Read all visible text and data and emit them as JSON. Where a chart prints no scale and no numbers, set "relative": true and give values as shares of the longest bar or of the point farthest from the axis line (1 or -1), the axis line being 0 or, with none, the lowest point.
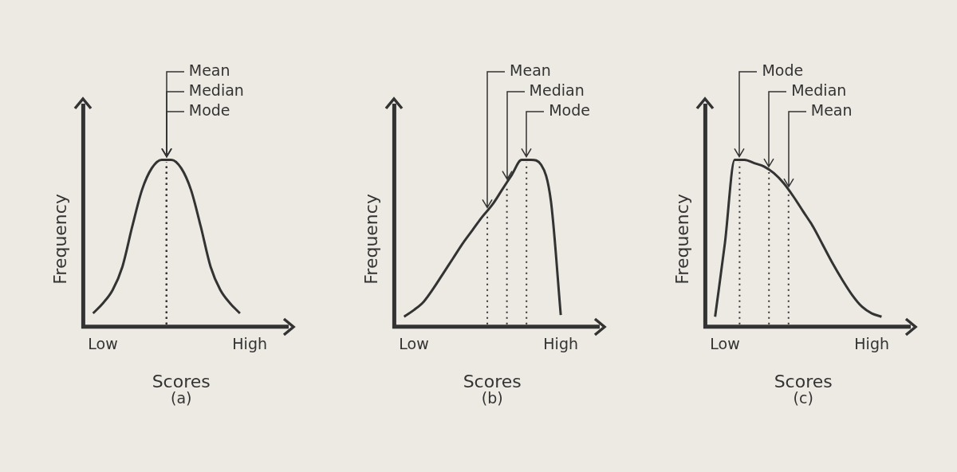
{
  "chart_data": [
    {
      "type": "line",
      "relative": true,
      "xlabel": "Scores",
      "ylabel": "Frequency",
      "color": "#333333",
      "grid": false,
      "legend": false,
      "marker": "none",
      "categories": [
        null,
        null,
        "Low",
        null,
        null,
        null,
        null,
        null,
        null,
        null,
        null,
        null,
        null,
        null,
        null,
        null,
        null,
        "High",
        null,
        null,
        null
      ],
      "values": [
        null,
        0.08,
        0.14,
        0.22,
        0.36,
        0.6,
        0.82,
        0.95,
        1,
        1,
        0.95,
        0.82,
        0.6,
        0.36,
        0.22,
        0.14,
        0.08,
        null,
        null,
        null,
        null
      ],
      "annotations": [
        "Mean",
        "Median",
        "Mode",
        "(a)"
      ]
    },
    {
      "type": "line",
      "relative": true,
      "xlabel": "Scores",
      "ylabel": "Frequency",
      "color": "#333333",
      "grid": false,
      "legend": false,
      "marker": "none",
      "categories": [
        null,
        null,
        "Low",
        null,
        null,
        null,
        null,
        null,
        null,
        null,
        null,
        null,
        null,
        null,
        null,
        null,
        null,
        "High",
        null,
        null,
        null
      ],
      "values": [
        null,
        0.06,
        0.1,
        0.15,
        0.23,
        0.32,
        0.41,
        0.5,
        0.58,
        0.66,
        0.73,
        0.82,
        0.91,
        1,
        1,
        0.97,
        0.75,
        0.07,
        null,
        null,
        null
      ],
      "annotations": [
        "Mean",
        "Median",
        "Mode",
        "(b)"
      ]
    },
    {
      "type": "line",
      "relative": true,
      "xlabel": "Scores",
      "ylabel": "Frequency",
      "color": "#333333",
      "grid": false,
      "legend": false,
      "marker": "none",
      "categories": [
        null,
        null,
        "Low",
        null,
        null,
        null,
        null,
        null,
        null,
        null,
        null,
        null,
        null,
        null,
        null,
        null,
        null,
        "High",
        null,
        null,
        null
      ],
      "values": [
        null,
        0.06,
        0.5,
        1,
        1,
        0.98,
        0.96,
        0.92,
        0.86,
        0.78,
        0.69,
        0.6,
        0.49,
        0.38,
        0.28,
        0.19,
        0.12,
        0.08,
        0.06,
        null,
        null
      ],
      "annotations": [
        "Mode",
        "Median",
        "Mean",
        "(c)"
      ]
    }
  ]
}
